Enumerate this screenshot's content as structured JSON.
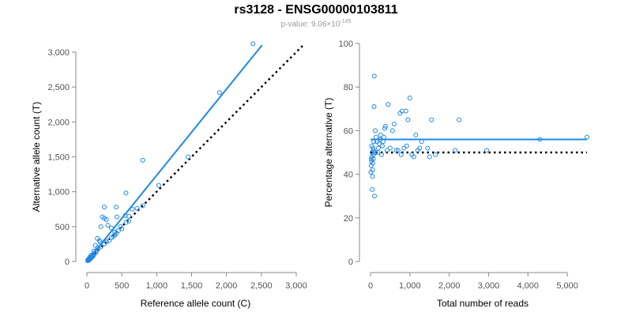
{
  "title": "rs3128 - ENSG00000103811",
  "subtitle": {
    "prefix": "p-value: 9.06",
    "times": "×",
    "base": "10",
    "exponent": "-145"
  },
  "colors": {
    "points": "#1f88e5",
    "fit": "#1f88e5",
    "reference": "#000000",
    "axis": "#888888"
  },
  "chart_data": [
    {
      "type": "scatter",
      "xlabel": "Reference allele count (C)",
      "ylabel": "Alternative allele count (T)",
      "xlim": [
        0,
        3000
      ],
      "ylim": [
        0,
        3000
      ],
      "xticks": [
        0,
        500,
        1000,
        1500,
        2000,
        2500,
        3000
      ],
      "xtick_labels": [
        "0",
        "500",
        "1,000",
        "1,500",
        "2,000",
        "2,500",
        "3,000"
      ],
      "yticks": [
        0,
        500,
        1000,
        1500,
        2000,
        2500,
        3000
      ],
      "ytick_labels": [
        "0",
        "500",
        "1,000",
        "1,500",
        "2,000",
        "2,500",
        "3,000"
      ],
      "fit_line": {
        "x": [
          0,
          2510
        ],
        "y": [
          0,
          3100
        ]
      },
      "reference_line": {
        "x": [
          0,
          3100
        ],
        "y": [
          0,
          3100
        ]
      },
      "points": [
        [
          2380,
          3120
        ],
        [
          1900,
          2420
        ],
        [
          800,
          1450
        ],
        [
          1450,
          1500
        ],
        [
          1030,
          1090
        ],
        [
          560,
          980
        ],
        [
          800,
          800
        ],
        [
          720,
          760
        ],
        [
          250,
          780
        ],
        [
          420,
          780
        ],
        [
          650,
          750
        ],
        [
          220,
          640
        ],
        [
          250,
          620
        ],
        [
          280,
          600
        ],
        [
          430,
          640
        ],
        [
          550,
          660
        ],
        [
          600,
          650
        ],
        [
          200,
          500
        ],
        [
          300,
          520
        ],
        [
          350,
          480
        ],
        [
          400,
          420
        ],
        [
          450,
          440
        ],
        [
          480,
          500
        ],
        [
          500,
          470
        ],
        [
          560,
          560
        ],
        [
          600,
          580
        ],
        [
          150,
          330
        ],
        [
          180,
          300
        ],
        [
          190,
          280
        ],
        [
          120,
          230
        ],
        [
          160,
          200
        ],
        [
          200,
          210
        ],
        [
          250,
          250
        ],
        [
          280,
          280
        ],
        [
          320,
          300
        ],
        [
          350,
          340
        ],
        [
          380,
          360
        ],
        [
          400,
          380
        ],
        [
          420,
          400
        ],
        [
          100,
          150
        ],
        [
          110,
          120
        ],
        [
          130,
          130
        ],
        [
          140,
          160
        ],
        [
          80,
          80
        ],
        [
          60,
          90
        ],
        [
          50,
          40
        ],
        [
          40,
          60
        ],
        [
          30,
          20
        ],
        [
          20,
          30
        ],
        [
          10,
          10
        ],
        [
          15,
          25
        ],
        [
          25,
          15
        ],
        [
          35,
          45
        ],
        [
          45,
          35
        ],
        [
          55,
          50
        ],
        [
          65,
          70
        ],
        [
          75,
          60
        ],
        [
          85,
          95
        ],
        [
          95,
          85
        ]
      ]
    },
    {
      "type": "scatter",
      "xlabel": "Total number of reads",
      "ylabel": "Percentage alternative (T)",
      "xlim": [
        0,
        5500
      ],
      "ylim": [
        0,
        100
      ],
      "xticks": [
        0,
        1000,
        2000,
        3000,
        4000,
        5000
      ],
      "xtick_labels": [
        "0",
        "1,000",
        "2,000",
        "3,000",
        "4,000",
        "5,000"
      ],
      "yticks": [
        0,
        20,
        40,
        60,
        80,
        100
      ],
      "ytick_labels": [
        "0",
        "20",
        "40",
        "60",
        "80",
        "100"
      ],
      "fit_line": {
        "x": [
          0,
          5500
        ],
        "y": [
          56,
          56
        ]
      },
      "reference_line": {
        "x": [
          0,
          5500
        ],
        "y": [
          50,
          50
        ]
      },
      "points": [
        [
          5500,
          57
        ],
        [
          4300,
          56
        ],
        [
          2950,
          51
        ],
        [
          2250,
          65
        ],
        [
          2150,
          51
        ],
        [
          1650,
          49
        ],
        [
          1550,
          65
        ],
        [
          1500,
          48
        ],
        [
          1450,
          52
        ],
        [
          1300,
          55
        ],
        [
          1250,
          52
        ],
        [
          1200,
          51
        ],
        [
          1150,
          58
        ],
        [
          1100,
          48
        ],
        [
          1050,
          49
        ],
        [
          1000,
          75
        ],
        [
          950,
          65
        ],
        [
          920,
          53
        ],
        [
          900,
          69
        ],
        [
          850,
          52
        ],
        [
          800,
          69
        ],
        [
          780,
          49
        ],
        [
          750,
          68
        ],
        [
          700,
          51
        ],
        [
          650,
          51
        ],
        [
          600,
          63
        ],
        [
          560,
          60
        ],
        [
          500,
          52
        ],
        [
          450,
          72
        ],
        [
          420,
          51
        ],
        [
          380,
          62
        ],
        [
          360,
          61
        ],
        [
          340,
          57
        ],
        [
          320,
          55
        ],
        [
          300,
          53
        ],
        [
          280,
          49
        ],
        [
          260,
          58
        ],
        [
          240,
          56
        ],
        [
          220,
          54
        ],
        [
          200,
          52
        ],
        [
          180,
          50
        ],
        [
          160,
          55
        ],
        [
          140,
          57
        ],
        [
          120,
          60
        ],
        [
          110,
          50
        ],
        [
          100,
          30
        ],
        [
          95,
          85
        ],
        [
          90,
          71
        ],
        [
          85,
          55
        ],
        [
          80,
          49
        ],
        [
          75,
          51
        ],
        [
          70,
          47
        ],
        [
          65,
          52
        ],
        [
          60,
          45
        ],
        [
          55,
          42
        ],
        [
          50,
          39
        ],
        [
          45,
          33
        ],
        [
          40,
          50
        ],
        [
          35,
          48
        ],
        [
          30,
          53
        ],
        [
          25,
          46
        ],
        [
          20,
          47
        ],
        [
          15,
          44
        ],
        [
          10,
          41
        ]
      ]
    }
  ]
}
